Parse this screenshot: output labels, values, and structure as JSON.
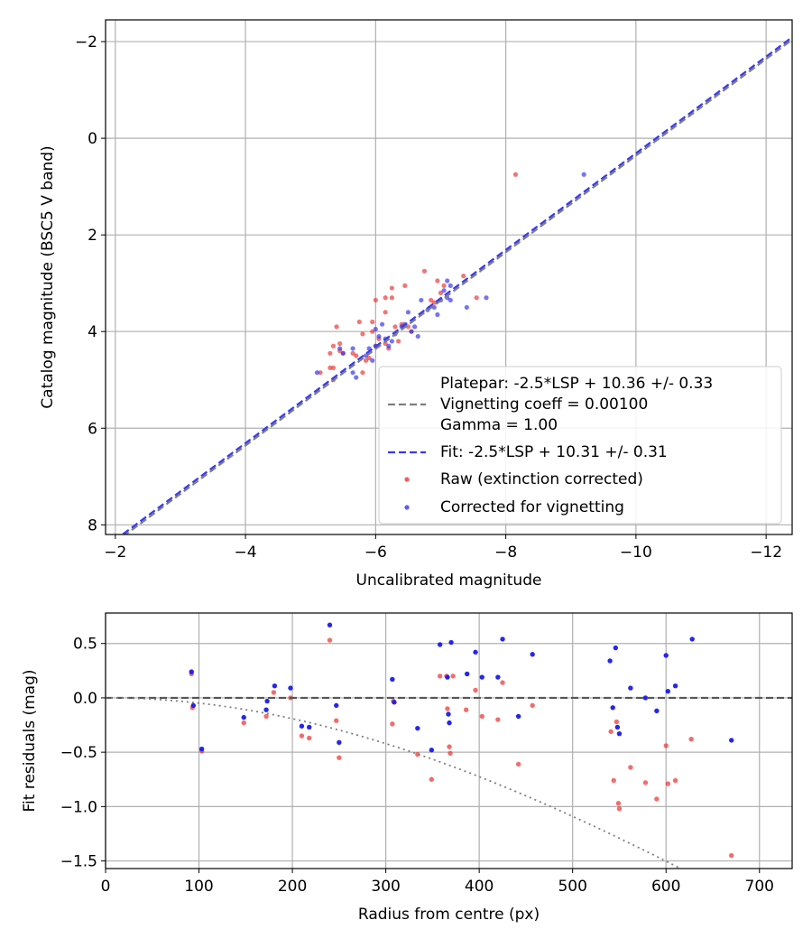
{
  "chart_data": [
    {
      "type": "scatter",
      "xlabel": "Uncalibrated magnitude",
      "ylabel": "Catalog magnitude (BSC5 V band)",
      "xlim": [
        -1.85,
        -12.4
      ],
      "ylim": [
        8.2,
        -2.45
      ],
      "xticks": [
        -2,
        -4,
        -6,
        -8,
        -10,
        -12
      ],
      "yticks": [
        -2,
        0,
        2,
        4,
        6,
        8
      ],
      "xtick_labels": [
        "−2",
        "−4",
        "−6",
        "−8",
        "−10",
        "−12"
      ],
      "ytick_labels": [
        "−2",
        "0",
        "2",
        "4",
        "6",
        "8"
      ],
      "grid": true,
      "legend": {
        "position": "lower-right",
        "entries": [
          "Platepar: -2.5*LSP + 10.36 +/- 0.33",
          "Vignetting coeff = 0.00100",
          "Gamma = 1.00",
          "Fit: -2.5*LSP + 10.31 +/- 0.31",
          "Raw (extinction corrected)",
          "Corrected for vignetting"
        ]
      },
      "lines": [
        {
          "name": "Platepar",
          "slope": 1,
          "intercept": 10.36,
          "color": "#7f7f7f",
          "style": "dashed"
        },
        {
          "name": "Fit",
          "slope": 1,
          "intercept": 10.31,
          "color": "#3a3aee",
          "style": "dashed"
        }
      ],
      "series": [
        {
          "name": "Raw (extinction corrected)",
          "color": "#ee3333",
          "points": [
            [
              -8.15,
              0.75
            ],
            [
              -6.75,
              2.75
            ],
            [
              -6.45,
              3.05
            ],
            [
              -6.25,
              3.1
            ],
            [
              -6.25,
              3.3
            ],
            [
              -6.15,
              3.3
            ],
            [
              -6.0,
              3.35
            ],
            [
              -6.15,
              3.6
            ],
            [
              -5.95,
              3.8
            ],
            [
              -5.75,
              3.8
            ],
            [
              -5.4,
              3.9
            ],
            [
              -5.45,
              4.25
            ],
            [
              -5.35,
              4.3
            ],
            [
              -5.45,
              4.4
            ],
            [
              -5.3,
              4.45
            ],
            [
              -5.7,
              4.5
            ],
            [
              -5.65,
              4.45
            ],
            [
              -5.5,
              4.45
            ],
            [
              -5.9,
              4.55
            ],
            [
              -5.85,
              4.6
            ],
            [
              -5.35,
              4.75
            ],
            [
              -5.3,
              4.75
            ],
            [
              -5.15,
              4.85
            ],
            [
              -5.35,
              5.0
            ],
            [
              -5.95,
              4.0
            ],
            [
              -5.8,
              4.05
            ],
            [
              -6.3,
              3.9
            ],
            [
              -6.4,
              3.85
            ],
            [
              -6.5,
              3.9
            ],
            [
              -6.55,
              4.0
            ],
            [
              -6.95,
              2.95
            ],
            [
              -7.05,
              3.05
            ],
            [
              -7.0,
              3.2
            ],
            [
              -6.85,
              3.35
            ],
            [
              -6.9,
              3.4
            ],
            [
              -7.35,
              2.85
            ],
            [
              -7.55,
              3.3
            ],
            [
              -6.05,
              4.15
            ],
            [
              -6.15,
              4.25
            ],
            [
              -6.0,
              4.3
            ],
            [
              -6.2,
              4.35
            ],
            [
              -6.35,
              4.2
            ],
            [
              -5.8,
              4.85
            ]
          ]
        },
        {
          "name": "Corrected for vignetting",
          "color": "#3333ee",
          "points": [
            [
              -9.2,
              0.75
            ],
            [
              -7.1,
              2.95
            ],
            [
              -7.15,
              3.05
            ],
            [
              -7.05,
              3.15
            ],
            [
              -7.1,
              3.3
            ],
            [
              -7.15,
              3.35
            ],
            [
              -7.7,
              3.3
            ],
            [
              -7.4,
              3.5
            ],
            [
              -7.0,
              3.35
            ],
            [
              -6.7,
              3.35
            ],
            [
              -6.8,
              3.55
            ],
            [
              -6.5,
              3.6
            ],
            [
              -6.45,
              3.85
            ],
            [
              -6.4,
              3.9
            ],
            [
              -6.6,
              3.9
            ],
            [
              -6.55,
              4.0
            ],
            [
              -6.1,
              3.85
            ],
            [
              -6.0,
              3.95
            ],
            [
              -6.05,
              4.1
            ],
            [
              -6.15,
              4.15
            ],
            [
              -6.2,
              4.3
            ],
            [
              -6.0,
              4.3
            ],
            [
              -5.9,
              4.35
            ],
            [
              -5.85,
              4.5
            ],
            [
              -5.65,
              4.35
            ],
            [
              -5.5,
              4.45
            ],
            [
              -5.45,
              4.35
            ],
            [
              -5.1,
              4.85
            ],
            [
              -5.7,
              4.95
            ],
            [
              -5.95,
              4.6
            ],
            [
              -6.3,
              4.05
            ],
            [
              -6.65,
              4.1
            ],
            [
              -5.65,
              4.85
            ],
            [
              -6.25,
              4.2
            ],
            [
              -6.9,
              3.5
            ],
            [
              -6.95,
              3.65
            ]
          ]
        }
      ]
    },
    {
      "type": "scatter",
      "xlabel": "Radius from centre (px)",
      "ylabel": "Fit residuals (mag)",
      "xlim": [
        0,
        735
      ],
      "ylim": [
        -1.57,
        0.78
      ],
      "xticks": [
        0,
        100,
        200,
        300,
        400,
        500,
        600,
        700
      ],
      "yticks": [
        0.5,
        0.0,
        -0.5,
        -1.0,
        -1.5
      ],
      "xtick_labels": [
        "0",
        "100",
        "200",
        "300",
        "400",
        "500",
        "600",
        "700"
      ],
      "ytick_labels": [
        "0.5",
        "0.0",
        "−0.5",
        "−1.0",
        "−1.5"
      ],
      "grid": true,
      "lines": [
        {
          "name": "zero",
          "y": 0,
          "color": "#555555",
          "style": "dashed"
        },
        {
          "name": "vignetting curve",
          "color": "#7f7f7f",
          "style": "dotted",
          "coeff": 0.001
        }
      ],
      "series": [
        {
          "name": "Raw (extinction corrected)",
          "color": "#ee3333",
          "points": [
            [
              92,
              0.22
            ],
            [
              93,
              -0.09
            ],
            [
              103,
              -0.49
            ],
            [
              148,
              -0.23
            ],
            [
              172,
              -0.17
            ],
            [
              180,
              0.05
            ],
            [
              198,
              0.0
            ],
            [
              210,
              -0.35
            ],
            [
              218,
              -0.37
            ],
            [
              240,
              0.53
            ],
            [
              247,
              -0.21
            ],
            [
              250,
              -0.55
            ],
            [
              307,
              -0.24
            ],
            [
              308,
              -0.03
            ],
            [
              334,
              -0.52
            ],
            [
              349,
              -0.75
            ],
            [
              358,
              0.2
            ],
            [
              365,
              0.2
            ],
            [
              366,
              -0.1
            ],
            [
              368,
              -0.45
            ],
            [
              369,
              -0.51
            ],
            [
              372,
              0.2
            ],
            [
              386,
              -0.11
            ],
            [
              396,
              0.07
            ],
            [
              403,
              -0.17
            ],
            [
              420,
              -0.2
            ],
            [
              425,
              0.14
            ],
            [
              442,
              -0.61
            ],
            [
              457,
              -0.07
            ],
            [
              541,
              -0.31
            ],
            [
              544,
              -0.76
            ],
            [
              547,
              -0.22
            ],
            [
              549,
              -0.97
            ],
            [
              550,
              -1.02
            ],
            [
              562,
              -0.64
            ],
            [
              578,
              -0.78
            ],
            [
              590,
              -0.93
            ],
            [
              600,
              -0.44
            ],
            [
              602,
              -0.79
            ],
            [
              610,
              -0.76
            ],
            [
              627,
              -0.38
            ],
            [
              670,
              -1.45
            ]
          ]
        },
        {
          "name": "Corrected for vignetting",
          "color": "#1a1aee",
          "points": [
            [
              92,
              0.24
            ],
            [
              94,
              -0.07
            ],
            [
              103,
              -0.47
            ],
            [
              148,
              -0.18
            ],
            [
              172,
              -0.11
            ],
            [
              173,
              -0.03
            ],
            [
              181,
              0.11
            ],
            [
              198,
              0.09
            ],
            [
              210,
              -0.26
            ],
            [
              218,
              -0.27
            ],
            [
              240,
              0.67
            ],
            [
              247,
              -0.07
            ],
            [
              250,
              -0.41
            ],
            [
              307,
              0.17
            ],
            [
              309,
              -0.04
            ],
            [
              334,
              -0.28
            ],
            [
              349,
              -0.48
            ],
            [
              358,
              0.49
            ],
            [
              366,
              0.19
            ],
            [
              367,
              -0.15
            ],
            [
              368,
              -0.23
            ],
            [
              370,
              0.51
            ],
            [
              387,
              0.22
            ],
            [
              396,
              0.42
            ],
            [
              403,
              0.19
            ],
            [
              420,
              0.19
            ],
            [
              425,
              0.54
            ],
            [
              442,
              -0.17
            ],
            [
              457,
              0.4
            ],
            [
              540,
              0.34
            ],
            [
              543,
              -0.09
            ],
            [
              546,
              0.46
            ],
            [
              548,
              -0.27
            ],
            [
              550,
              -0.33
            ],
            [
              562,
              0.09
            ],
            [
              578,
              0.0
            ],
            [
              590,
              -0.12
            ],
            [
              600,
              0.39
            ],
            [
              602,
              0.06
            ],
            [
              610,
              0.11
            ],
            [
              628,
              0.54
            ],
            [
              670,
              -0.39
            ]
          ]
        }
      ]
    }
  ]
}
